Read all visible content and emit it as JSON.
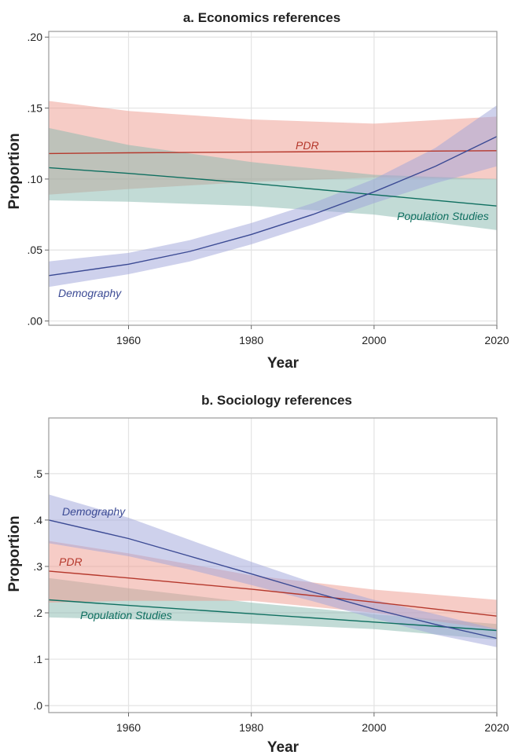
{
  "chart_data": [
    {
      "type": "line",
      "title": "a. Economics references",
      "xlabel": "Year",
      "ylabel": "Proportion",
      "xlim": [
        1947,
        2020
      ],
      "ylim": [
        -0.003,
        0.204
      ],
      "xticks": [
        1960,
        1980,
        2000,
        2020
      ],
      "xtick_labels": [
        "1960",
        "1980",
        "2000",
        "2020"
      ],
      "yticks": [
        0,
        0.05,
        0.1,
        0.15,
        0.2
      ],
      "ytick_labels": [
        ".00",
        ".05",
        ".10",
        ".15",
        ".20"
      ],
      "grid": true,
      "legend": "none (inline series labels)",
      "series": [
        {
          "name": "PDR",
          "color": "#b5382c",
          "band_color": "#ee9a8d",
          "x": [
            1947,
            1960,
            1980,
            2000,
            2020
          ],
          "y": [
            0.118,
            0.1185,
            0.119,
            0.1195,
            0.12
          ],
          "lower": [
            0.089,
            0.093,
            0.098,
            0.101,
            0.1
          ],
          "upper": [
            0.155,
            0.148,
            0.142,
            0.139,
            0.144
          ]
        },
        {
          "name": "Population Studies",
          "color": "#0f6f60",
          "band_color": "#86b8ad",
          "x": [
            1947,
            1960,
            1980,
            2000,
            2020
          ],
          "y": [
            0.108,
            0.104,
            0.097,
            0.089,
            0.081
          ],
          "lower": [
            0.085,
            0.084,
            0.081,
            0.075,
            0.064
          ],
          "upper": [
            0.136,
            0.124,
            0.112,
            0.103,
            0.1
          ]
        },
        {
          "name": "Demography",
          "color": "#3b4a94",
          "band_color": "#9ea4d9",
          "x": [
            1947,
            1960,
            1970,
            1980,
            1990,
            2000,
            2010,
            2020
          ],
          "y": [
            0.032,
            0.04,
            0.049,
            0.061,
            0.075,
            0.091,
            0.109,
            0.13
          ],
          "lower": [
            0.024,
            0.033,
            0.042,
            0.054,
            0.068,
            0.083,
            0.097,
            0.109
          ],
          "upper": [
            0.042,
            0.048,
            0.057,
            0.069,
            0.083,
            0.1,
            0.122,
            0.152
          ]
        }
      ]
    },
    {
      "type": "line",
      "title": "b. Sociology references",
      "xlabel": "Year",
      "ylabel": "Proportion",
      "xlim": [
        1947,
        2020
      ],
      "ylim": [
        -0.015,
        0.62
      ],
      "xticks": [
        1960,
        1980,
        2000,
        2020
      ],
      "xtick_labels": [
        "1960",
        "1980",
        "2000",
        "2020"
      ],
      "yticks": [
        0,
        0.1,
        0.2,
        0.3,
        0.4,
        0.5
      ],
      "ytick_labels": [
        ".0",
        ".1",
        ".2",
        ".3",
        ".4",
        ".5"
      ],
      "grid": true,
      "legend": "none (inline series labels)",
      "series": [
        {
          "name": "Population Studies",
          "color": "#0f6f60",
          "band_color": "#86b8ad",
          "x": [
            1947,
            1960,
            1980,
            2000,
            2020
          ],
          "y": [
            0.228,
            0.216,
            0.198,
            0.18,
            0.162
          ],
          "lower": [
            0.19,
            0.186,
            0.177,
            0.165,
            0.142
          ],
          "upper": [
            0.275,
            0.253,
            0.222,
            0.197,
            0.176
          ]
        },
        {
          "name": "PDR",
          "color": "#b5382c",
          "band_color": "#ee9a8d",
          "x": [
            1947,
            1960,
            1980,
            2000,
            2020
          ],
          "y": [
            0.29,
            0.275,
            0.251,
            0.223,
            0.193
          ],
          "lower": [
            0.222,
            0.226,
            0.226,
            0.2,
            0.164
          ],
          "upper": [
            0.355,
            0.328,
            0.281,
            0.25,
            0.228
          ]
        },
        {
          "name": "Demography",
          "color": "#3b4a94",
          "band_color": "#9ea4d9",
          "x": [
            1947,
            1960,
            1970,
            1980,
            1990,
            2000,
            2010,
            2020
          ],
          "y": [
            0.4,
            0.36,
            0.322,
            0.284,
            0.245,
            0.208,
            0.175,
            0.145
          ],
          "lower": [
            0.35,
            0.322,
            0.293,
            0.26,
            0.225,
            0.188,
            0.153,
            0.126
          ],
          "upper": [
            0.455,
            0.405,
            0.357,
            0.31,
            0.265,
            0.228,
            0.197,
            0.165
          ]
        }
      ]
    }
  ]
}
